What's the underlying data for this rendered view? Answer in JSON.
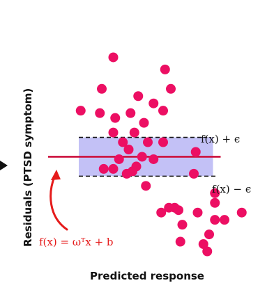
{
  "chart_data": {
    "type": "scatter",
    "title": "",
    "xlabel": "Predicted response",
    "ylabel": "Residuals (PTSD symptom)",
    "xlim": [
      0,
      10
    ],
    "ylim": [
      -4,
      4.6
    ],
    "grid": false,
    "regression_line": {
      "slope": 0,
      "intercept": 0,
      "color": "#cc0f3b"
    },
    "epsilon_band": {
      "x_from": 1.2,
      "x_to": 8.2,
      "upper": 0.8,
      "lower": -0.8,
      "fill": "#b9b6f4"
    },
    "point_color": "#ec0f63",
    "annotations": {
      "upper_label": "f(x) + ϵ",
      "lower_label": "f(x) − ϵ",
      "model_label": "f(x) = ωᵀx + b",
      "model_label_color": "#e51b1b"
    },
    "points": [
      {
        "x": 3.0,
        "y": 4.1
      },
      {
        "x": 5.7,
        "y": 3.6
      },
      {
        "x": 2.4,
        "y": 2.8
      },
      {
        "x": 6.0,
        "y": 2.8
      },
      {
        "x": 4.3,
        "y": 2.5
      },
      {
        "x": 5.1,
        "y": 2.2
      },
      {
        "x": 1.3,
        "y": 1.9
      },
      {
        "x": 2.3,
        "y": 1.8
      },
      {
        "x": 3.9,
        "y": 1.8
      },
      {
        "x": 5.6,
        "y": 1.9
      },
      {
        "x": 3.1,
        "y": 1.6
      },
      {
        "x": 4.6,
        "y": 1.4
      },
      {
        "x": 3.0,
        "y": 1.0
      },
      {
        "x": 4.1,
        "y": 1.0
      },
      {
        "x": 3.5,
        "y": 0.6
      },
      {
        "x": 4.8,
        "y": 0.6
      },
      {
        "x": 5.6,
        "y": 0.6
      },
      {
        "x": 3.8,
        "y": 0.3
      },
      {
        "x": 4.5,
        "y": 0.0
      },
      {
        "x": 7.3,
        "y": 0.2
      },
      {
        "x": 5.1,
        "y": -0.1
      },
      {
        "x": 3.3,
        "y": -0.1
      },
      {
        "x": 4.2,
        "y": -0.4
      },
      {
        "x": 2.5,
        "y": -0.5
      },
      {
        "x": 3.0,
        "y": -0.5
      },
      {
        "x": 4.0,
        "y": -0.6
      },
      {
        "x": 3.7,
        "y": -0.7
      },
      {
        "x": 7.2,
        "y": -0.7
      },
      {
        "x": 4.7,
        "y": -1.2
      },
      {
        "x": 8.3,
        "y": -1.5
      },
      {
        "x": 8.3,
        "y": -1.9
      },
      {
        "x": 6.2,
        "y": -2.1
      },
      {
        "x": 5.9,
        "y": -2.1
      },
      {
        "x": 6.4,
        "y": -2.2
      },
      {
        "x": 5.5,
        "y": -2.3
      },
      {
        "x": 7.4,
        "y": -2.3
      },
      {
        "x": 9.7,
        "y": -2.3
      },
      {
        "x": 8.3,
        "y": -2.6
      },
      {
        "x": 8.8,
        "y": -2.6
      },
      {
        "x": 6.6,
        "y": -2.8
      },
      {
        "x": 8.0,
        "y": -3.2
      },
      {
        "x": 6.5,
        "y": -3.5
      },
      {
        "x": 7.7,
        "y": -3.6
      },
      {
        "x": 7.9,
        "y": -3.9
      }
    ]
  }
}
